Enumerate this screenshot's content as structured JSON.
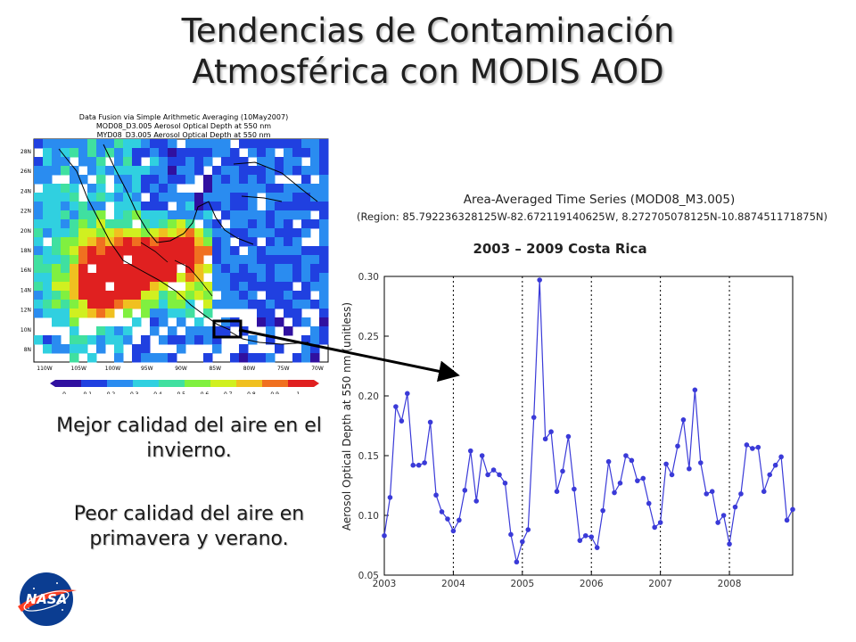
{
  "slide": {
    "title_line1": "Tendencias de Contaminación",
    "title_line2": "Atmosférica con MODIS AOD",
    "bullet1": "Mejor calidad del aire en el invierno.",
    "bullet2": "Peor calidad del aire en primavera y verano.",
    "logo_text": "NASA"
  },
  "map": {
    "title_lines": [
      "Data Fusion via Simple Arithmetic Averaging (10May2007)",
      "MOD08_D3.005 Aerosol Optical Depth at 550 nm",
      "MYD08_D3.005 Aerosol Optical Depth at 550 nm"
    ],
    "lon_labels": [
      "110W",
      "105W",
      "100W",
      "95W",
      "90W",
      "85W",
      "80W",
      "75W",
      "70W"
    ],
    "lat_labels": [
      "28N",
      "26N",
      "24N",
      "22N",
      "20N",
      "18N",
      "16N",
      "14N",
      "12N",
      "10N",
      "8N"
    ],
    "colorbar_labels": [
      "0",
      "0.1",
      "0.2",
      "0.3",
      "0.4",
      "0.5",
      "0.6",
      "0.7",
      "0.8",
      "0.9",
      "1"
    ],
    "colors": [
      "#3010a0",
      "#2040e0",
      "#2a8cf0",
      "#30d0e0",
      "#40e0a0",
      "#80f040",
      "#d0f020",
      "#f0c020",
      "#f07020",
      "#e02020"
    ]
  },
  "chart_data": {
    "type": "line",
    "title": "Area-Averaged Time Series (MOD08_M3.005)",
    "subtitle": "(Region: 85.792236328125W-82.672119140625W, 8.272705078125N-10.887451171875N)",
    "annotation": "2003 – 2009  Costa Rica",
    "ylabel": "Aerosol Optical Depth at 550 nm (unitless)",
    "xlabel": "",
    "xlim": [
      "2003-01",
      "2008-12"
    ],
    "ylim": [
      0.05,
      0.3
    ],
    "yticks": [
      "0.05",
      "0.10",
      "0.15",
      "0.20",
      "0.25",
      "0.30"
    ],
    "xticks": [
      "2003",
      "2004",
      "2005",
      "2006",
      "2007",
      "2008"
    ],
    "grid": "vertical dotted lines at year boundaries",
    "line_color": "#3a3ad8",
    "series": [
      {
        "x": [
          "2003-01",
          "2003-02",
          "2003-03",
          "2003-04",
          "2003-05",
          "2003-06",
          "2003-07",
          "2003-08",
          "2003-09",
          "2003-10",
          "2003-11",
          "2003-12",
          "2004-01",
          "2004-02",
          "2004-03",
          "2004-04",
          "2004-05",
          "2004-06",
          "2004-07",
          "2004-08",
          "2004-09",
          "2004-10",
          "2004-11",
          "2004-12",
          "2005-01",
          "2005-02",
          "2005-03",
          "2005-04",
          "2005-05",
          "2005-06",
          "2005-07",
          "2005-08",
          "2005-09",
          "2005-10",
          "2005-11",
          "2005-12",
          "2006-01",
          "2006-02",
          "2006-03",
          "2006-04",
          "2006-05",
          "2006-06",
          "2006-07",
          "2006-08",
          "2006-09",
          "2006-10",
          "2006-11",
          "2006-12",
          "2007-01",
          "2007-02",
          "2007-03",
          "2007-04",
          "2007-05",
          "2007-06",
          "2007-07",
          "2007-08",
          "2007-09",
          "2007-10",
          "2007-11",
          "2007-12",
          "2008-01",
          "2008-02",
          "2008-03",
          "2008-04",
          "2008-05",
          "2008-06",
          "2008-07",
          "2008-08",
          "2008-09",
          "2008-10",
          "2008-11",
          "2008-12"
        ],
        "values": [
          0.083,
          0.115,
          0.191,
          0.179,
          0.202,
          0.142,
          0.142,
          0.144,
          0.178,
          0.117,
          0.103,
          0.097,
          0.087,
          0.096,
          0.121,
          0.154,
          0.112,
          0.15,
          0.134,
          0.138,
          0.134,
          0.127,
          0.084,
          0.061,
          0.078,
          0.088,
          0.182,
          0.297,
          0.164,
          0.17,
          0.12,
          0.137,
          0.166,
          0.122,
          0.079,
          0.083,
          0.082,
          0.073,
          0.104,
          0.145,
          0.119,
          0.127,
          0.15,
          0.146,
          0.129,
          0.131,
          0.11,
          0.09,
          0.094,
          0.143,
          0.134,
          0.158,
          0.18,
          0.139,
          0.205,
          0.144,
          0.118,
          0.12,
          0.094,
          0.1,
          0.076,
          0.107,
          0.118,
          0.159,
          0.156,
          0.157,
          0.12,
          0.134,
          0.142,
          0.149,
          0.096,
          0.105
        ]
      }
    ]
  }
}
